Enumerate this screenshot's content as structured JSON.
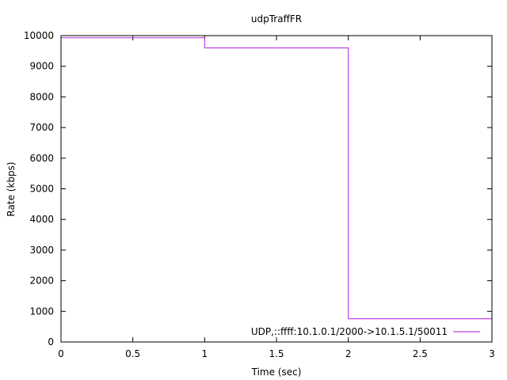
{
  "chart_data": {
    "type": "line",
    "title": "udpTraffFR",
    "xlabel": "Time (sec)",
    "ylabel": "Rate (kbps)",
    "xlim": [
      0,
      3
    ],
    "ylim": [
      0,
      10000
    ],
    "x_ticks": [
      "0",
      "0.5",
      "1",
      "1.5",
      "2",
      "2.5",
      "3"
    ],
    "y_ticks": [
      "0",
      "1000",
      "2000",
      "3000",
      "4000",
      "5000",
      "6000",
      "7000",
      "8000",
      "9000",
      "10000"
    ],
    "grid": false,
    "legend_position": "bottom-right",
    "step": true,
    "series": [
      {
        "name": "UDP,::ffff:10.1.0.1/2000->10.1.5.1/50011",
        "color": "#c040e8",
        "x": [
          0,
          1,
          1,
          2,
          2,
          3
        ],
        "y": [
          9930,
          9930,
          9600,
          9600,
          760,
          760
        ]
      }
    ]
  }
}
